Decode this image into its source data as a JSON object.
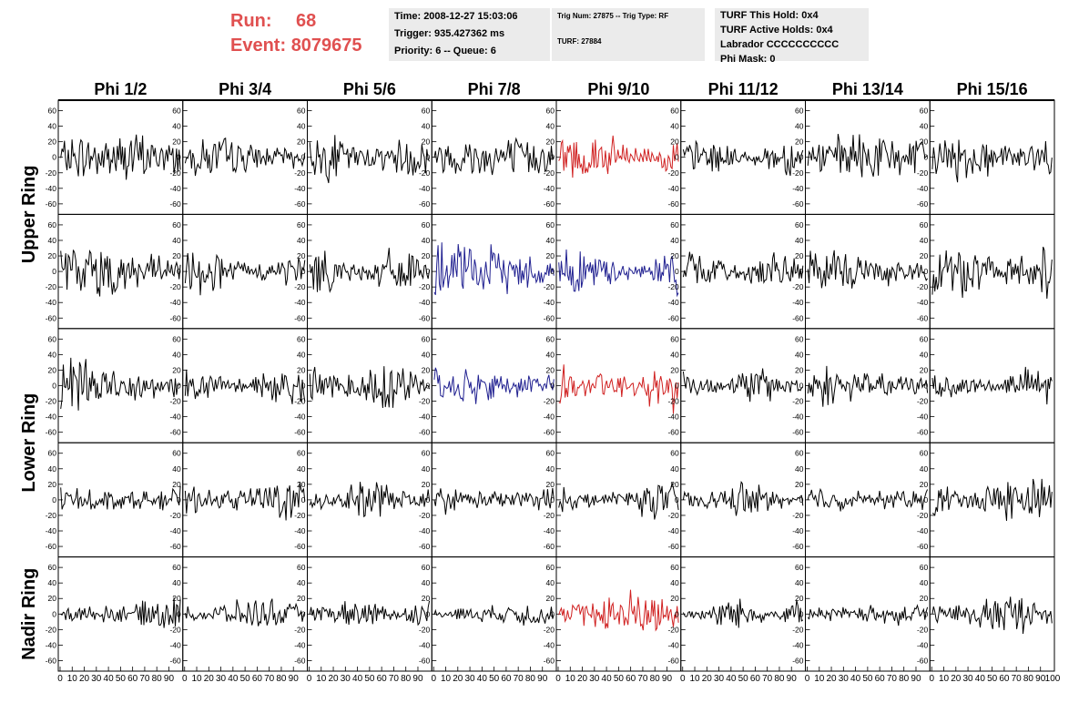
{
  "header": {
    "run_label": "Run:",
    "run_value": "68",
    "event_label": "Event:",
    "event_value": "8079675",
    "run_color": "#e05050"
  },
  "info_time": {
    "time": "Time: 2008-12-27 15:03:06",
    "trigger": "Trigger: 935.427362 ms",
    "priority": "Priority: 6 -- Queue: 6"
  },
  "info_trig": {
    "trig": "Trig Num: 27875 -- Trig Type: RF",
    "turf": "TURF: 27884"
  },
  "info_turf": {
    "this_hold": "TURF This Hold: 0x4",
    "active_holds": "TURF Active Holds: 0x4",
    "labrador": "Labrador CCCCCCCCCC",
    "phi_mask": "Phi Mask: 0"
  },
  "chart_data": {
    "type": "line",
    "columns": [
      "Phi 1/2",
      "Phi 3/4",
      "Phi 5/6",
      "Phi 7/8",
      "Phi 9/10",
      "Phi 11/12",
      "Phi 13/14",
      "Phi 15/16"
    ],
    "row_groups": [
      {
        "label": "Upper Ring",
        "rows": [
          0,
          1
        ]
      },
      {
        "label": "Lower Ring",
        "rows": [
          2,
          3
        ]
      },
      {
        "label": "Nadir Ring",
        "rows": [
          4
        ]
      }
    ],
    "ylim": [
      -70,
      70
    ],
    "yticks": [
      -60,
      -40,
      -20,
      0,
      20,
      40,
      60
    ],
    "xlim": [
      0,
      100
    ],
    "xticks": [
      0,
      10,
      20,
      30,
      40,
      50,
      60,
      70,
      80,
      90
    ],
    "last_xtick": "100",
    "samples": 96,
    "colors": {
      "default": "#000000",
      "red": "#d02020",
      "blue": "#202090"
    },
    "highlights": [
      {
        "row": 0,
        "col": 4,
        "color": "red"
      },
      {
        "row": 1,
        "col": 3,
        "color": "blue"
      },
      {
        "row": 1,
        "col": 4,
        "color": "blue"
      },
      {
        "row": 2,
        "col": 3,
        "color": "blue"
      },
      {
        "row": 2,
        "col": 4,
        "color": "red"
      },
      {
        "row": 4,
        "col": 4,
        "color": "red"
      }
    ],
    "amplitude": [
      [
        22,
        18,
        20,
        18,
        22,
        16,
        20,
        22
      ],
      [
        24,
        20,
        20,
        24,
        22,
        18,
        18,
        26
      ],
      [
        26,
        16,
        22,
        22,
        22,
        16,
        20,
        18
      ],
      [
        18,
        18,
        18,
        18,
        16,
        16,
        18,
        22
      ],
      [
        16,
        14,
        14,
        14,
        22,
        14,
        14,
        18
      ]
    ]
  }
}
